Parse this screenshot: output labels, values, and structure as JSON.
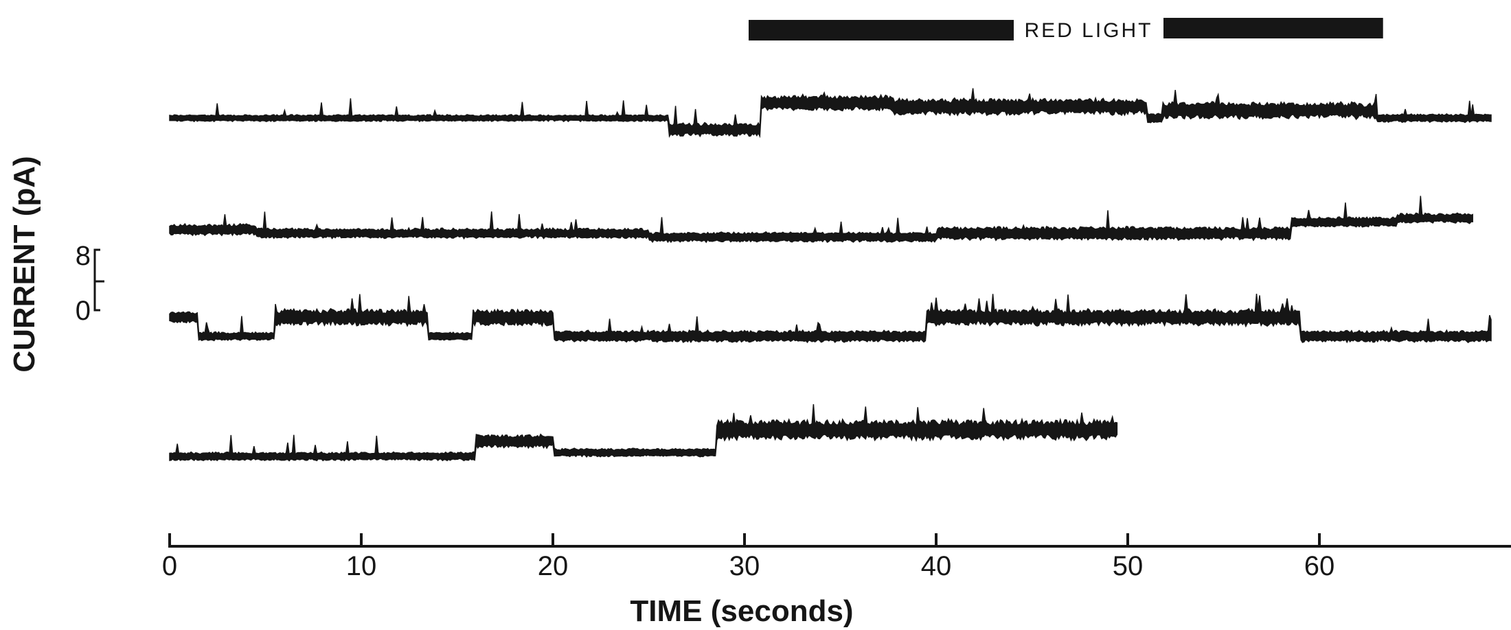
{
  "chart_data": {
    "type": "line",
    "title": "",
    "xlabel": "TIME (seconds)",
    "ylabel": "CURRENT (pA)",
    "xlim": [
      0,
      70
    ],
    "x_ticks": [
      0,
      10,
      20,
      30,
      40,
      50,
      60
    ],
    "scale_bar": {
      "labels": [
        "8",
        "0"
      ],
      "values_pA": [
        8,
        0
      ]
    },
    "stimulus": {
      "label": "RED LIGHT",
      "start": 30,
      "end": 63
    },
    "grid": false,
    "legend": "none",
    "colors": {
      "trace": "#161616",
      "background": "#ffffff"
    },
    "series": [
      {
        "t_start": 0,
        "t_end": 69,
        "segments": [
          [
            0,
            26,
            0,
            1
          ],
          [
            26,
            30.8,
            -3,
            5
          ],
          [
            30.8,
            37.7,
            4,
            6
          ],
          [
            37.7,
            51,
            3,
            7
          ],
          [
            51,
            51.8,
            0,
            3
          ],
          [
            51.8,
            63,
            2,
            7
          ],
          [
            63,
            69,
            0,
            2
          ]
        ]
      },
      {
        "t_start": 0,
        "t_end": 68,
        "segments": [
          [
            0,
            4.5,
            1,
            4
          ],
          [
            4.5,
            25,
            0,
            3
          ],
          [
            25,
            40,
            -1,
            3
          ],
          [
            40,
            58.5,
            0,
            5
          ],
          [
            58.5,
            64,
            3,
            3
          ],
          [
            64,
            68,
            4,
            3
          ]
        ]
      },
      {
        "t_start": 0,
        "t_end": 69,
        "segments": [
          [
            0,
            1.5,
            5,
            4
          ],
          [
            1.5,
            5.5,
            0,
            2
          ],
          [
            5.5,
            13.5,
            5,
            7
          ],
          [
            13.5,
            15.8,
            0,
            2
          ],
          [
            15.8,
            20,
            5,
            7
          ],
          [
            20,
            39.5,
            0,
            4
          ],
          [
            39.5,
            59,
            5,
            7
          ],
          [
            59,
            69,
            0,
            4
          ]
        ]
      },
      {
        "t_start": 0,
        "t_end": 49.5,
        "segments": [
          [
            0,
            16,
            0,
            2
          ],
          [
            16,
            20,
            4,
            5
          ],
          [
            20,
            28.5,
            1,
            2
          ],
          [
            28.5,
            49.5,
            7,
            9
          ]
        ]
      }
    ]
  }
}
